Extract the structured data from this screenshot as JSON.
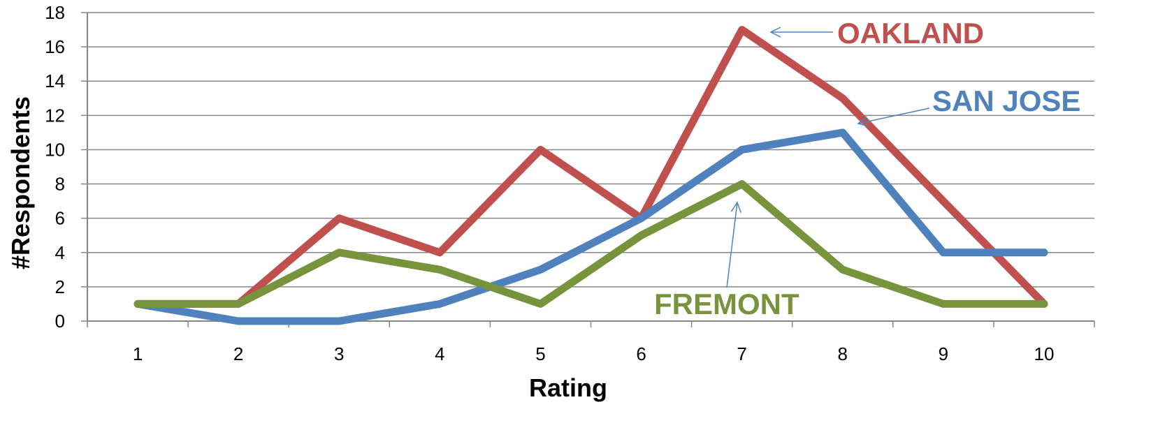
{
  "chart_data": {
    "type": "line",
    "title": "",
    "xlabel": "Rating",
    "ylabel": "#Respondents",
    "categories": [
      "1",
      "2",
      "3",
      "4",
      "5",
      "6",
      "7",
      "8",
      "9",
      "10"
    ],
    "ylim": [
      0,
      18
    ],
    "yticks": [
      "0",
      "2",
      "4",
      "6",
      "8",
      "10",
      "12",
      "14",
      "16",
      "18"
    ],
    "grid": true,
    "legend": "none",
    "series": [
      {
        "name": "OAKLAND",
        "color": "#C0504D",
        "values": [
          1,
          1,
          6,
          4,
          10,
          6,
          17,
          13,
          7,
          1
        ]
      },
      {
        "name": "SAN JOSE",
        "color": "#4F81BD",
        "values": [
          1,
          0,
          0,
          1,
          3,
          6,
          10,
          11,
          4,
          4
        ]
      },
      {
        "name": "FREMONT",
        "color": "#77933C",
        "values": [
          1,
          1,
          4,
          3,
          1,
          5,
          8,
          3,
          1,
          1
        ]
      }
    ]
  }
}
